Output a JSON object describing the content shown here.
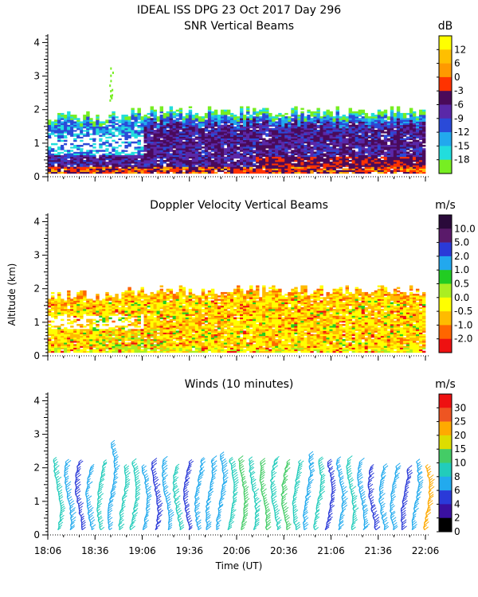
{
  "figure": {
    "title": "IDEAL ISS DPG  23 Oct 2017 Day 296",
    "y_label": "Altitude (km)",
    "x_label": "Time (UT)",
    "x_ticks": [
      "18:06",
      "18:36",
      "19:06",
      "19:36",
      "20:06",
      "20:36",
      "21:06",
      "21:36",
      "22:06"
    ]
  },
  "chart_data": [
    {
      "type": "heatmap",
      "title": "SNR Vertical Beams",
      "x_range": [
        "18:06",
        "22:06"
      ],
      "y_range": [
        0,
        4.2
      ],
      "y_ticks": [
        "0",
        "1",
        "2",
        "3",
        "4"
      ],
      "colorbar": {
        "unit": "dB",
        "labels": [
          "12",
          "6",
          "0",
          "-3",
          "-6",
          "-9",
          "-12",
          "-15",
          "-18"
        ],
        "colors": [
          "#ffff00",
          "#ffbf00",
          "#ff9900",
          "#ff3300",
          "#4a0a5a",
          "#5a28a8",
          "#2a4ad8",
          "#22a8ee",
          "#22dddd",
          "#77ee22"
        ]
      },
      "data_top_km": 2.0,
      "notes": "Echo layer from ~0.1 to ~2.0 km: strongest returns (0 to 12 dB) near surface, -3 to -9 dB in 0.4-1.8 km, weaker -12 to -18 dB at layer top; weaker coverage before 18:50."
    },
    {
      "type": "heatmap",
      "title": "Doppler Velocity Vertical Beams",
      "x_range": [
        "18:06",
        "22:06"
      ],
      "y_range": [
        0,
        4.2
      ],
      "y_ticks": [
        "0",
        "1",
        "2",
        "3",
        "4"
      ],
      "colorbar": {
        "unit": "m/s",
        "labels": [
          "10.0",
          "5.0",
          "2.0",
          "1.0",
          "0.5",
          "0.0",
          "-0.5",
          "-1.0",
          "-2.0"
        ],
        "colors": [
          "#2a0a3a",
          "#5a1a6a",
          "#2a3ad8",
          "#22a8ee",
          "#22cc22",
          "#aaee22",
          "#ffff00",
          "#ffbb00",
          "#ff6600",
          "#ee1111"
        ]
      },
      "data_top_km": 2.0,
      "notes": "Mostly near-zero to weakly negative (downward) velocities 0.0 to -1.0 m/s from 0.1 to 2.0 km."
    },
    {
      "type": "scatter",
      "title": "Winds (10 minutes)",
      "x_range": [
        "18:06",
        "22:06"
      ],
      "y_range": [
        0,
        4.2
      ],
      "y_ticks": [
        "0",
        "1",
        "2",
        "3",
        "4"
      ],
      "colorbar": {
        "unit": "m/s",
        "labels": [
          "30",
          "25",
          "20",
          "15",
          "10",
          "8",
          "6",
          "4",
          "2",
          "0"
        ],
        "colors": [
          "#ee1111",
          "#ee5522",
          "#ffaa00",
          "#dddd00",
          "#44cc66",
          "#22ccbb",
          "#22aaee",
          "#2a3ad8",
          "#3a10a0",
          "#000000"
        ]
      },
      "profile_interval_min": 10,
      "profile_top_km": [
        2.3,
        2.2,
        2.2,
        2.1,
        2.2,
        2.8,
        2.1,
        2.2,
        2.1,
        2.2,
        2.3,
        2.1,
        2.2,
        2.3,
        2.3,
        2.4,
        2.3,
        2.3,
        2.3,
        2.2,
        2.3,
        2.2,
        2.2,
        2.4,
        2.3,
        2.2,
        2.3,
        2.3,
        2.2,
        2.1,
        2.1,
        2.1,
        2.0,
        2.2,
        2.1
      ],
      "profile_color_m_s": [
        8,
        6,
        4,
        6,
        8,
        6,
        8,
        8,
        6,
        4,
        6,
        8,
        4,
        6,
        6,
        6,
        8,
        10,
        8,
        10,
        8,
        10,
        8,
        6,
        8,
        4,
        6,
        8,
        6,
        4,
        6,
        6,
        4,
        6,
        20
      ]
    }
  ]
}
